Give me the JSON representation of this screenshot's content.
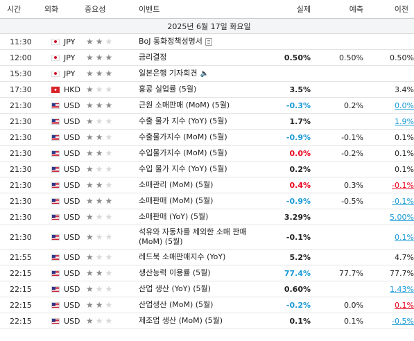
{
  "headers": {
    "time": "시간",
    "currency": "외화",
    "importance": "중요성",
    "event": "이벤트",
    "actual": "실제",
    "forecast": "예측",
    "previous": "이전"
  },
  "date_row": "2025년 6월 17일 화요일",
  "colors": {
    "positive": "#1a9ad6",
    "negative": "#e8001c",
    "star_on": "#8a8a8a",
    "star_off": "#d8d8d8"
  },
  "rows": [
    {
      "time": "11:30",
      "flag": "jp",
      "currency": "JPY",
      "stars": 2,
      "event": "BoJ 통화정책성명서",
      "icon": "document-icon",
      "actual": "",
      "actual_style": "",
      "forecast": "",
      "previous": "",
      "previous_style": ""
    },
    {
      "time": "12:00",
      "flag": "jp",
      "currency": "JPY",
      "stars": 3,
      "event": "금리결정",
      "icon": "",
      "actual": "0.50%",
      "actual_style": "blk",
      "forecast": "0.50%",
      "previous": "0.50%",
      "previous_style": "blk"
    },
    {
      "time": "15:30",
      "flag": "jp",
      "currency": "JPY",
      "stars": 3,
      "event": "일본은행 기자회견",
      "icon": "speaker-icon",
      "actual": "",
      "actual_style": "",
      "forecast": "",
      "previous": "",
      "previous_style": ""
    },
    {
      "time": "17:30",
      "flag": "hk",
      "currency": "HKD",
      "stars": 1,
      "event": "홍콩 실업률 (5월)",
      "icon": "",
      "actual": "3.5%",
      "actual_style": "blk",
      "forecast": "",
      "previous": "3.4%",
      "previous_style": "blk"
    },
    {
      "time": "21:30",
      "flag": "us",
      "currency": "USD",
      "stars": 3,
      "event": "근원 소매판매 (MoM) (5월)",
      "icon": "",
      "actual": "-0.3%",
      "actual_style": "green",
      "forecast": "0.2%",
      "previous": "0.0%",
      "previous_style": "green ul"
    },
    {
      "time": "21:30",
      "flag": "us",
      "currency": "USD",
      "stars": 1,
      "event": "수출 물가 지수 (YoY) (5월)",
      "icon": "",
      "actual": "1.7%",
      "actual_style": "blk",
      "forecast": "",
      "previous": "1.9%",
      "previous_style": "green ul"
    },
    {
      "time": "21:30",
      "flag": "us",
      "currency": "USD",
      "stars": 2,
      "event": "수출물가지수 (MoM) (5월)",
      "icon": "",
      "actual": "-0.9%",
      "actual_style": "green",
      "forecast": "-0.1%",
      "previous": "0.1%",
      "previous_style": "blk"
    },
    {
      "time": "21:30",
      "flag": "us",
      "currency": "USD",
      "stars": 2,
      "event": "수입물가지수 (MoM) (5월)",
      "icon": "",
      "actual": "0.0%",
      "actual_style": "red",
      "forecast": "-0.2%",
      "previous": "0.1%",
      "previous_style": "blk"
    },
    {
      "time": "21:30",
      "flag": "us",
      "currency": "USD",
      "stars": 1,
      "event": "수입 물가 지수 (YoY) (5월)",
      "icon": "",
      "actual": "0.2%",
      "actual_style": "blk",
      "forecast": "",
      "previous": "0.1%",
      "previous_style": "blk"
    },
    {
      "time": "21:30",
      "flag": "us",
      "currency": "USD",
      "stars": 2,
      "event": "소매관리 (MoM) (5월)",
      "icon": "",
      "actual": "0.4%",
      "actual_style": "red",
      "forecast": "0.3%",
      "previous": "-0.1%",
      "previous_style": "red ul"
    },
    {
      "time": "21:30",
      "flag": "us",
      "currency": "USD",
      "stars": 3,
      "event": "소매판매 (MoM) (5월)",
      "icon": "",
      "actual": "-0.9%",
      "actual_style": "green",
      "forecast": "-0.5%",
      "previous": "-0.1%",
      "previous_style": "green ul"
    },
    {
      "time": "21:30",
      "flag": "us",
      "currency": "USD",
      "stars": 1,
      "event": "소매판매 (YoY) (5월)",
      "icon": "",
      "actual": "3.29%",
      "actual_style": "blk",
      "forecast": "",
      "previous": "5.00%",
      "previous_style": "green ul"
    },
    {
      "time": "21:30",
      "flag": "us",
      "currency": "USD",
      "stars": 1,
      "event": "석유와 자동차를 제외한 소매 판매 (MoM) (5월)",
      "icon": "",
      "actual": "-0.1%",
      "actual_style": "blk",
      "forecast": "",
      "previous": "0.1%",
      "previous_style": "green ul",
      "tall": true
    },
    {
      "time": "21:55",
      "flag": "us",
      "currency": "USD",
      "stars": 1,
      "event": "레드북 소매판매지수 (YoY)",
      "icon": "",
      "actual": "5.2%",
      "actual_style": "blk",
      "forecast": "",
      "previous": "4.7%",
      "previous_style": "blk"
    },
    {
      "time": "22:15",
      "flag": "us",
      "currency": "USD",
      "stars": 2,
      "event": "생산능력 이용률 (5월)",
      "icon": "",
      "actual": "77.4%",
      "actual_style": "green",
      "forecast": "77.7%",
      "previous": "77.7%",
      "previous_style": "blk"
    },
    {
      "time": "22:15",
      "flag": "us",
      "currency": "USD",
      "stars": 1,
      "event": "산업 생산 (YoY) (5월)",
      "icon": "",
      "actual": "0.60%",
      "actual_style": "blk",
      "forecast": "",
      "previous": "1.43%",
      "previous_style": "green ul"
    },
    {
      "time": "22:15",
      "flag": "us",
      "currency": "USD",
      "stars": 2,
      "event": "산업생산 (MoM) (5월)",
      "icon": "",
      "actual": "-0.2%",
      "actual_style": "green",
      "forecast": "0.0%",
      "previous": "0.1%",
      "previous_style": "red ul"
    },
    {
      "time": "22:15",
      "flag": "us",
      "currency": "USD",
      "stars": 1,
      "event": "제조업 생산 (MoM) (5월)",
      "icon": "",
      "actual": "0.1%",
      "actual_style": "blk",
      "forecast": "0.1%",
      "previous": "-0.5%",
      "previous_style": "green ul"
    }
  ]
}
